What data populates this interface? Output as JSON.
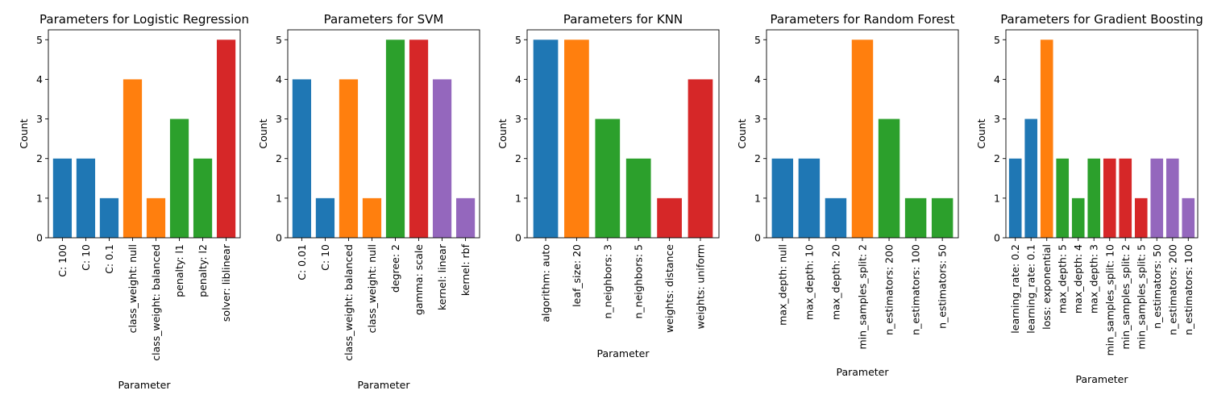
{
  "chart_data": [
    {
      "type": "bar",
      "title": "Parameters for Logistic Regression",
      "xlabel": "Parameter",
      "ylabel": "Count",
      "ylim": [
        0,
        5.25
      ],
      "yticks": [
        0,
        1,
        2,
        3,
        4,
        5
      ],
      "grid": false,
      "categories": [
        "C: 100",
        "C: 10",
        "C: 0.1",
        "class_weight: null",
        "class_weight: balanced",
        "penalty: l1",
        "penalty: l2",
        "solver: liblinear"
      ],
      "values": [
        2,
        2,
        1,
        4,
        1,
        3,
        2,
        5
      ],
      "colors": [
        "#1f77b4",
        "#1f77b4",
        "#1f77b4",
        "#ff7f0e",
        "#ff7f0e",
        "#2ca02c",
        "#2ca02c",
        "#d62728"
      ]
    },
    {
      "type": "bar",
      "title": "Parameters for SVM",
      "xlabel": "Parameter",
      "ylabel": "Count",
      "ylim": [
        0,
        5.25
      ],
      "yticks": [
        0,
        1,
        2,
        3,
        4,
        5
      ],
      "grid": false,
      "categories": [
        "C: 0.01",
        "C: 10",
        "class_weight: balanced",
        "class_weight: null",
        "degree: 2",
        "gamma: scale",
        "kernel: linear",
        "kernel: rbf"
      ],
      "values": [
        4,
        1,
        4,
        1,
        5,
        5,
        4,
        1
      ],
      "colors": [
        "#1f77b4",
        "#1f77b4",
        "#ff7f0e",
        "#ff7f0e",
        "#2ca02c",
        "#d62728",
        "#9467bd",
        "#9467bd"
      ]
    },
    {
      "type": "bar",
      "title": "Parameters for KNN",
      "xlabel": "Parameter",
      "ylabel": "Count",
      "ylim": [
        0,
        5.25
      ],
      "yticks": [
        0,
        1,
        2,
        3,
        4,
        5
      ],
      "grid": false,
      "categories": [
        "algorithm: auto",
        "leaf_size: 20",
        "n_neighbors: 3",
        "n_neighbors: 5",
        "weights: distance",
        "weights: uniform"
      ],
      "values": [
        5,
        5,
        3,
        2,
        1,
        4
      ],
      "colors": [
        "#1f77b4",
        "#ff7f0e",
        "#2ca02c",
        "#2ca02c",
        "#d62728",
        "#d62728"
      ]
    },
    {
      "type": "bar",
      "title": "Parameters for Random Forest",
      "xlabel": "Parameter",
      "ylabel": "Count",
      "ylim": [
        0,
        5.25
      ],
      "yticks": [
        0,
        1,
        2,
        3,
        4,
        5
      ],
      "grid": false,
      "categories": [
        "max_depth: null",
        "max_depth: 10",
        "max_depth: 20",
        "min_samples_split: 2",
        "n_estimators: 200",
        "n_estimators: 100",
        "n_estimators: 50"
      ],
      "values": [
        2,
        2,
        1,
        5,
        3,
        1,
        1
      ],
      "colors": [
        "#1f77b4",
        "#1f77b4",
        "#1f77b4",
        "#ff7f0e",
        "#2ca02c",
        "#2ca02c",
        "#2ca02c"
      ]
    },
    {
      "type": "bar",
      "title": "Parameters for Gradient Boosting",
      "xlabel": "Parameter",
      "ylabel": "Count",
      "ylim": [
        0,
        5.25
      ],
      "yticks": [
        0,
        1,
        2,
        3,
        4,
        5
      ],
      "grid": false,
      "categories": [
        "learning_rate: 0.2",
        "learning_rate: 0.1",
        "loss: exponential",
        "max_depth: 5",
        "max_depth: 4",
        "max_depth: 3",
        "min_samples_split: 10",
        "min_samples_split: 2",
        "min_samples_split: 5",
        "n_estimators: 50",
        "n_estimators: 200",
        "n_estimators: 100"
      ],
      "values": [
        2,
        3,
        5,
        2,
        1,
        2,
        2,
        2,
        1,
        2,
        2,
        1
      ],
      "colors": [
        "#1f77b4",
        "#1f77b4",
        "#ff7f0e",
        "#2ca02c",
        "#2ca02c",
        "#2ca02c",
        "#d62728",
        "#d62728",
        "#d62728",
        "#9467bd",
        "#9467bd",
        "#9467bd"
      ]
    }
  ]
}
